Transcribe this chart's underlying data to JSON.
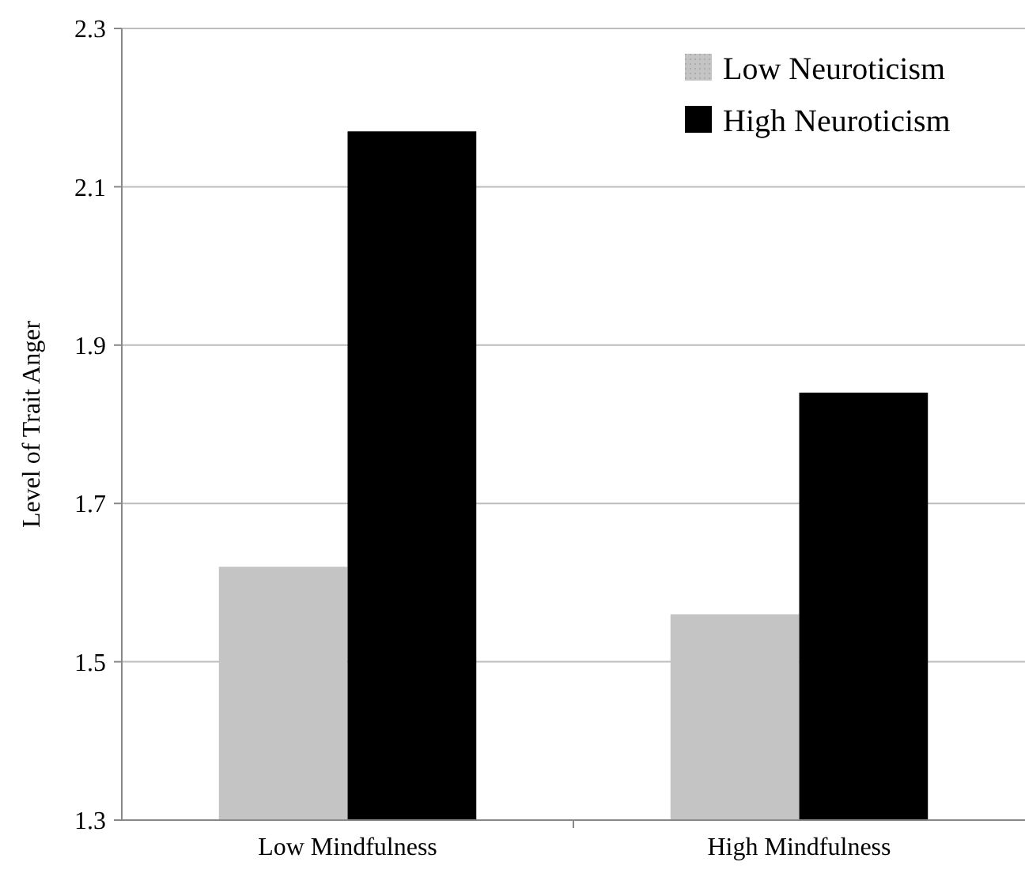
{
  "chart_data": {
    "type": "bar",
    "ylabel": "Level of Trait Anger",
    "categories": [
      "Low Mindfulness",
      "High Mindfulness"
    ],
    "series": [
      {
        "name": "Low Neuroticism",
        "color": "#c4c4c4",
        "values": [
          1.62,
          1.56
        ]
      },
      {
        "name": "High Neuroticism",
        "color": "#000000",
        "values": [
          2.17,
          1.84
        ]
      }
    ],
    "ylim": [
      1.3,
      2.3
    ],
    "yticks": [
      1.3,
      1.5,
      1.7,
      1.9,
      2.1,
      2.3
    ],
    "grid": "y",
    "legend": "top right"
  }
}
